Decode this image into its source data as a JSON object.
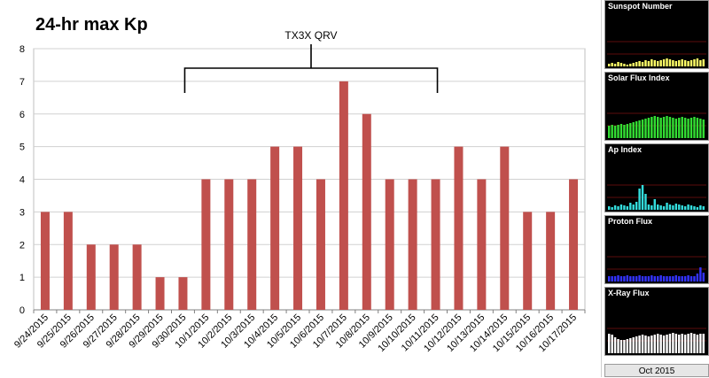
{
  "chart_data": {
    "type": "bar",
    "title": "24-hr max Kp",
    "xlabel": "",
    "ylabel": "",
    "categories": [
      "9/24/2015",
      "9/25/2015",
      "9/26/2015",
      "9/27/2015",
      "9/28/2015",
      "9/29/2015",
      "9/30/2015",
      "10/1/2015",
      "10/2/2015",
      "10/3/2015",
      "10/4/2015",
      "10/5/2015",
      "10/6/2015",
      "10/7/2015",
      "10/8/2015",
      "10/9/2015",
      "10/10/2015",
      "10/11/2015",
      "10/12/2015",
      "10/13/2015",
      "10/14/2015",
      "10/15/2015",
      "10/16/2015",
      "10/17/2015"
    ],
    "values": [
      3,
      3,
      2,
      2,
      2,
      1,
      1,
      4,
      4,
      4,
      5,
      5,
      4,
      7,
      6,
      4,
      4,
      4,
      5,
      4,
      5,
      3,
      3,
      4
    ],
    "ylim": [
      0,
      8
    ],
    "yticks": [
      0,
      1,
      2,
      3,
      4,
      5,
      6,
      7,
      8
    ],
    "grid": true,
    "bar_color": "#c0504d",
    "annotation": {
      "text": "TX3X QRV",
      "from": "9/30/2015",
      "to": "10/11/2015"
    }
  },
  "sidebar": {
    "panels": [
      {
        "title": "Sunspot Number",
        "color": "#ffff66"
      },
      {
        "title": "Solar Flux Index",
        "color": "#33dd33"
      },
      {
        "title": "Ap Index",
        "color": "#33dddd"
      },
      {
        "title": "Proton Flux",
        "color": "#3333ff"
      },
      {
        "title": "X-Ray Flux",
        "color": "#ffffff"
      }
    ],
    "month": "Oct 2015"
  }
}
